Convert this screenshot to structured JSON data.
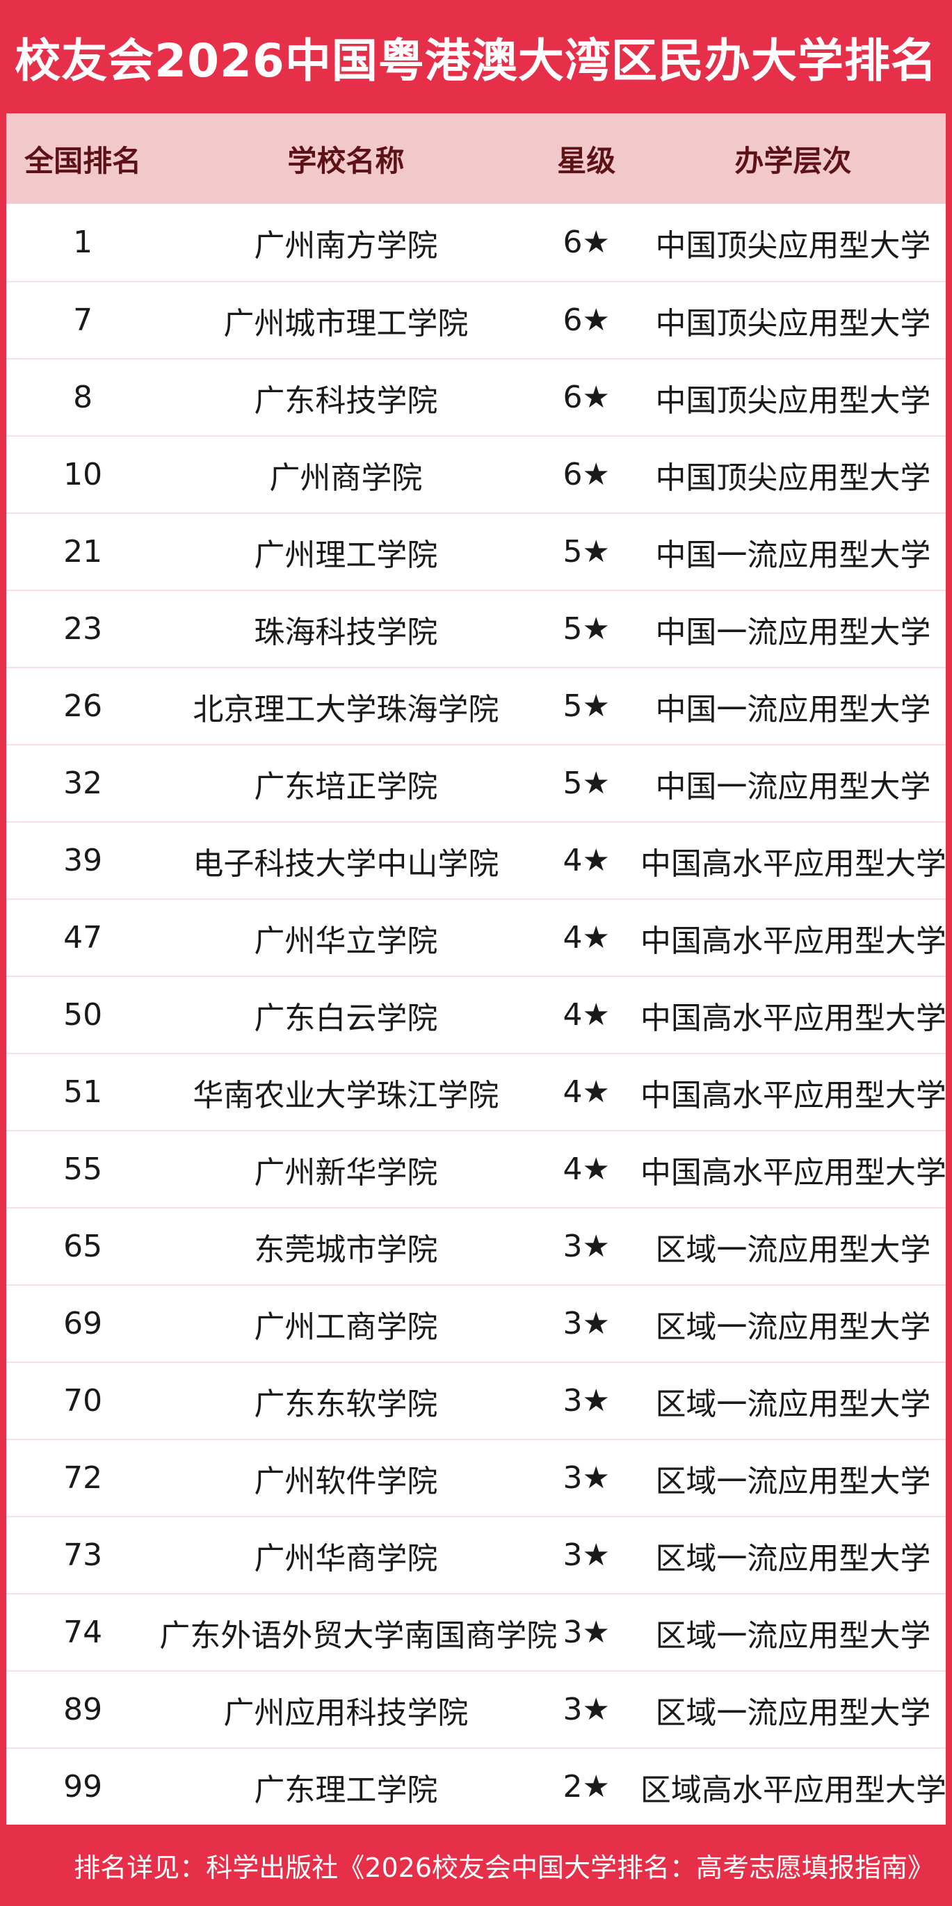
{
  "page": {
    "title": "校友会2026中国粤港澳大湾区民办大学排名",
    "footer_note": "排名详见：科学出版社《2026校友会中国大学排名：高考志愿填报指南》"
  },
  "colors": {
    "primary_red": "#e6304a",
    "header_pink": "#f2c9ca",
    "header_text_maroon": "#5c1216",
    "row_divider_pink": "#f8e0e1",
    "body_text": "#1a1a1a",
    "title_text": "#ffffff"
  },
  "chart_data": {
    "type": "table",
    "title": "校友会2026中国粤港澳大湾区民办大学排名",
    "columns": [
      "全国排名",
      "学校名称",
      "星级",
      "办学层次"
    ],
    "rows": [
      {
        "rank": "1",
        "school": "广州南方学院",
        "star": "6★",
        "level": "中国顶尖应用型大学"
      },
      {
        "rank": "7",
        "school": "广州城市理工学院",
        "star": "6★",
        "level": "中国顶尖应用型大学"
      },
      {
        "rank": "8",
        "school": "广东科技学院",
        "star": "6★",
        "level": "中国顶尖应用型大学"
      },
      {
        "rank": "10",
        "school": "广州商学院",
        "star": "6★",
        "level": "中国顶尖应用型大学"
      },
      {
        "rank": "21",
        "school": "广州理工学院",
        "star": "5★",
        "level": "中国一流应用型大学"
      },
      {
        "rank": "23",
        "school": "珠海科技学院",
        "star": "5★",
        "level": "中国一流应用型大学"
      },
      {
        "rank": "26",
        "school": "北京理工大学珠海学院",
        "star": "5★",
        "level": "中国一流应用型大学"
      },
      {
        "rank": "32",
        "school": "广东培正学院",
        "star": "5★",
        "level": "中国一流应用型大学"
      },
      {
        "rank": "39",
        "school": "电子科技大学中山学院",
        "star": "4★",
        "level": "中国高水平应用型大学"
      },
      {
        "rank": "47",
        "school": "广州华立学院",
        "star": "4★",
        "level": "中国高水平应用型大学"
      },
      {
        "rank": "50",
        "school": "广东白云学院",
        "star": "4★",
        "level": "中国高水平应用型大学"
      },
      {
        "rank": "51",
        "school": "华南农业大学珠江学院",
        "star": "4★",
        "level": "中国高水平应用型大学"
      },
      {
        "rank": "55",
        "school": "广州新华学院",
        "star": "4★",
        "level": "中国高水平应用型大学"
      },
      {
        "rank": "65",
        "school": "东莞城市学院",
        "star": "3★",
        "level": "区域一流应用型大学"
      },
      {
        "rank": "69",
        "school": "广州工商学院",
        "star": "3★",
        "level": "区域一流应用型大学"
      },
      {
        "rank": "70",
        "school": "广东东软学院",
        "star": "3★",
        "level": "区域一流应用型大学"
      },
      {
        "rank": "72",
        "school": "广州软件学院",
        "star": "3★",
        "level": "区域一流应用型大学"
      },
      {
        "rank": "73",
        "school": "广州华商学院",
        "star": "3★",
        "level": "区域一流应用型大学"
      },
      {
        "rank": "74",
        "school": "广东外语外贸大学南国商学院",
        "star": "3★",
        "level": "区域一流应用型大学"
      },
      {
        "rank": "89",
        "school": "广州应用科技学院",
        "star": "3★",
        "level": "区域一流应用型大学"
      },
      {
        "rank": "99",
        "school": "广东理工学院",
        "star": "2★",
        "level": "区域高水平应用型大学"
      }
    ]
  }
}
